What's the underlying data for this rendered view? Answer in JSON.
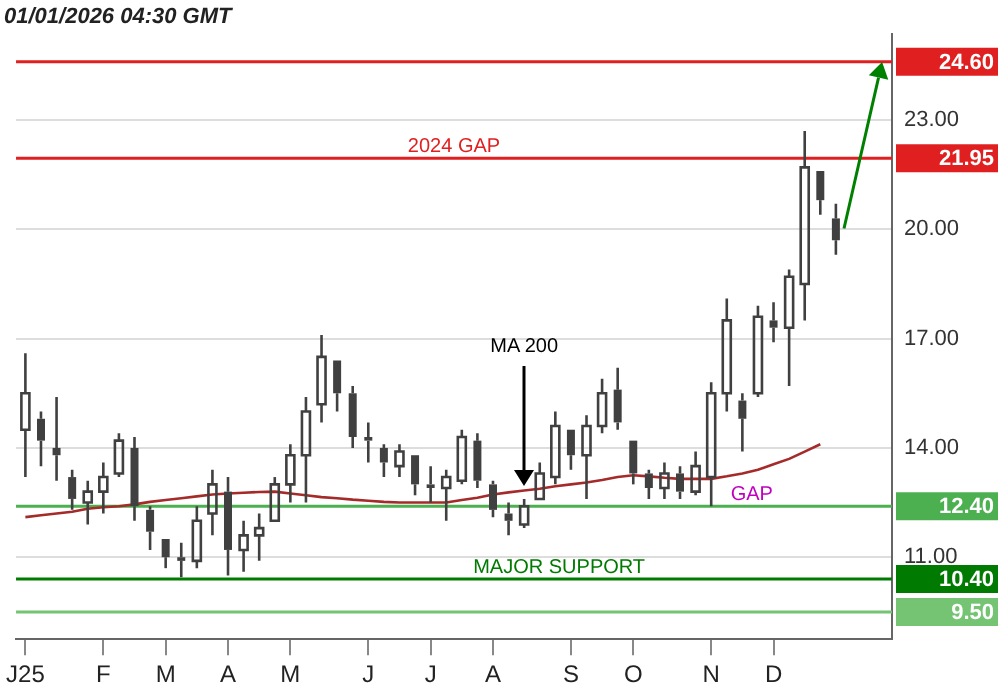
{
  "chart_data": {
    "type": "candlestick",
    "title": "01/01/2026 04:30 GMT",
    "color": "#404040",
    "categories": [
      "J25",
      null,
      null,
      null,
      null,
      "F",
      null,
      null,
      null,
      "M",
      null,
      null,
      null,
      "A",
      null,
      null,
      null,
      "M",
      null,
      null,
      null,
      null,
      "J",
      null,
      null,
      null,
      "J",
      null,
      null,
      null,
      "A",
      null,
      null,
      null,
      null,
      "S",
      null,
      null,
      null,
      "O",
      null,
      null,
      null,
      null,
      "N",
      null,
      null,
      null,
      "D",
      null,
      null,
      null,
      null
    ],
    "ohlc": [
      [
        14.5,
        16.6,
        13.2,
        15.5
      ],
      [
        14.8,
        15.0,
        13.5,
        14.2
      ],
      [
        14.0,
        15.4,
        13.1,
        13.8
      ],
      [
        13.2,
        13.4,
        12.3,
        12.6
      ],
      [
        12.5,
        13.1,
        11.9,
        12.8
      ],
      [
        12.8,
        13.6,
        12.2,
        13.2
      ],
      [
        13.3,
        14.4,
        13.2,
        14.2
      ],
      [
        14.0,
        14.3,
        12.0,
        12.4
      ],
      [
        12.3,
        12.4,
        11.2,
        11.7
      ],
      [
        11.5,
        11.5,
        10.7,
        11.0
      ],
      [
        11.0,
        11.4,
        10.45,
        10.9
      ],
      [
        10.9,
        12.4,
        10.7,
        12.0
      ],
      [
        12.2,
        13.4,
        11.6,
        13.0
      ],
      [
        12.8,
        13.2,
        10.5,
        11.2
      ],
      [
        11.2,
        12.0,
        10.6,
        11.6
      ],
      [
        11.6,
        12.2,
        10.9,
        11.8
      ],
      [
        12.0,
        13.2,
        12.0,
        13.0
      ],
      [
        13.0,
        14.1,
        12.5,
        13.8
      ],
      [
        13.8,
        15.4,
        12.5,
        15.0
      ],
      [
        15.2,
        17.1,
        14.7,
        16.5
      ],
      [
        16.4,
        16.4,
        15.0,
        15.5
      ],
      [
        15.5,
        15.7,
        14.0,
        14.3
      ],
      [
        14.3,
        14.7,
        13.6,
        14.2
      ],
      [
        14.0,
        14.1,
        13.2,
        13.6
      ],
      [
        13.5,
        14.1,
        13.2,
        13.9
      ],
      [
        13.8,
        13.8,
        12.7,
        13.0
      ],
      [
        13.0,
        13.5,
        12.5,
        12.9
      ],
      [
        12.9,
        13.4,
        12.0,
        13.2
      ],
      [
        13.1,
        14.5,
        13.0,
        14.3
      ],
      [
        14.2,
        14.4,
        12.9,
        13.1
      ],
      [
        13.0,
        13.1,
        12.1,
        12.3
      ],
      [
        12.2,
        12.5,
        11.6,
        12.0
      ],
      [
        11.9,
        12.6,
        11.8,
        12.4
      ],
      [
        12.6,
        13.6,
        12.6,
        13.3
      ],
      [
        13.2,
        15.0,
        13.0,
        14.6
      ],
      [
        14.5,
        14.5,
        13.4,
        13.8
      ],
      [
        13.8,
        14.9,
        12.6,
        14.6
      ],
      [
        14.6,
        15.9,
        14.4,
        15.5
      ],
      [
        15.6,
        16.2,
        14.5,
        14.7
      ],
      [
        14.2,
        14.2,
        13.0,
        13.3
      ],
      [
        13.3,
        13.4,
        12.6,
        12.9
      ],
      [
        12.9,
        13.6,
        12.6,
        13.3
      ],
      [
        13.3,
        13.5,
        12.6,
        12.8
      ],
      [
        12.8,
        13.9,
        12.7,
        13.5
      ],
      [
        13.2,
        15.8,
        12.4,
        15.5
      ],
      [
        15.5,
        18.1,
        15.0,
        17.5
      ],
      [
        15.3,
        15.5,
        13.9,
        14.8
      ],
      [
        15.5,
        17.9,
        15.4,
        17.6
      ],
      [
        17.5,
        18.0,
        16.9,
        17.3
      ],
      [
        17.3,
        18.9,
        15.7,
        18.7
      ],
      [
        18.5,
        22.7,
        17.5,
        21.7
      ],
      [
        21.6,
        21.6,
        20.4,
        20.8
      ],
      [
        20.3,
        20.7,
        19.3,
        19.7
      ]
    ],
    "series": [
      {
        "type": "line",
        "name": "MA 200",
        "color": "#a52a2a",
        "values": [
          12.1,
          12.15,
          12.2,
          12.25,
          12.33,
          12.37,
          12.4,
          12.45,
          12.52,
          12.57,
          12.62,
          12.67,
          12.72,
          12.75,
          12.77,
          12.79,
          12.8,
          12.75,
          12.7,
          12.65,
          12.62,
          12.58,
          12.55,
          12.52,
          12.5,
          12.5,
          12.5,
          12.5,
          12.57,
          12.63,
          12.72,
          12.78,
          12.83,
          12.88,
          12.95,
          13.0,
          13.05,
          13.12,
          13.2,
          13.25,
          13.22,
          13.18,
          13.15,
          13.15,
          13.15,
          13.22,
          13.3,
          13.4,
          13.55,
          13.7,
          13.9,
          14.1,
          null
        ]
      }
    ],
    "ylim": [
      8.75,
      25.35
    ],
    "yticks": [
      {
        "value": 11,
        "label": "11.00"
      },
      {
        "value": 14,
        "label": "14.00"
      },
      {
        "value": 17,
        "label": "17.00"
      },
      {
        "value": 20,
        "label": "20.00"
      },
      {
        "value": 23,
        "label": "23.00"
      }
    ],
    "grid": "y",
    "legend": false,
    "ref_lines": [
      {
        "axis": "y",
        "value": 24.6,
        "label": "24.60",
        "color": "#e02020"
      },
      {
        "axis": "y",
        "value": 21.95,
        "label": "21.95",
        "color": "#e02020"
      },
      {
        "axis": "y",
        "value": 12.4,
        "label": "12.40",
        "color": "#4caf50"
      },
      {
        "axis": "y",
        "value": 10.4,
        "label": "10.40",
        "color": "#007a00"
      },
      {
        "axis": "y",
        "value": 9.5,
        "label": "9.50",
        "color": "#74c474"
      }
    ],
    "annotations": [
      "2024 GAP",
      "MAJOR SUPPORT",
      "GAP"
    ]
  }
}
